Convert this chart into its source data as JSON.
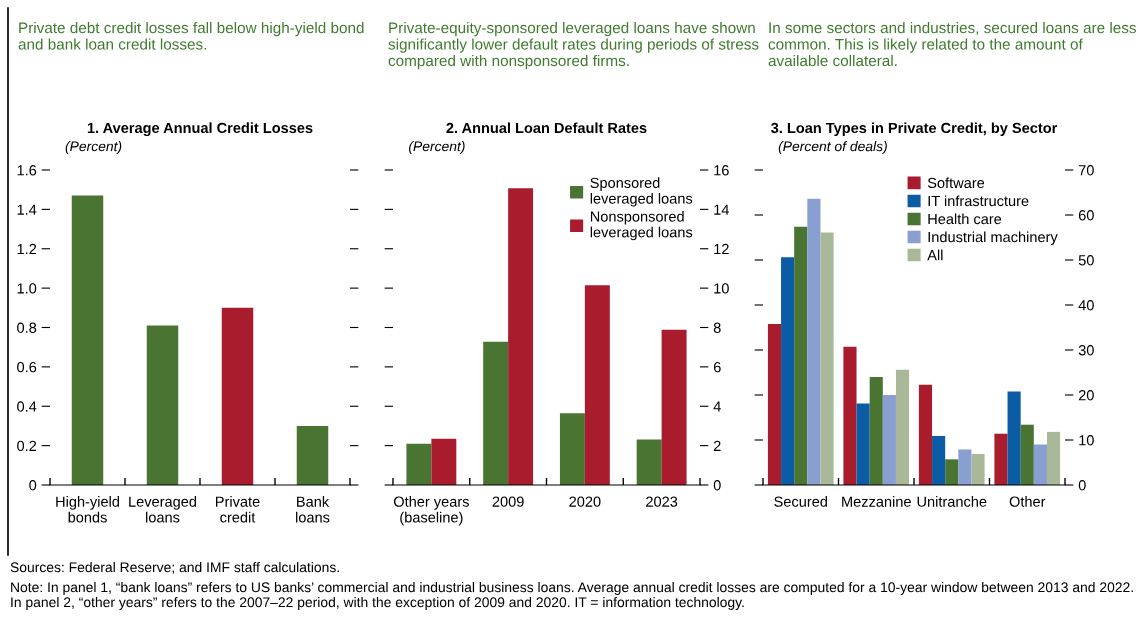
{
  "chart_data": [
    {
      "type": "bar",
      "title": "1. Average Annual Credit Losses",
      "subtitle": "(Percent)",
      "categories": [
        "High-yield\nbonds",
        "Leveraged\nloans",
        "Private\ncredit",
        "Bank\nloans"
      ],
      "values": [
        1.47,
        0.81,
        0.9,
        0.3
      ],
      "colors": [
        "#4a7432",
        "#4a7432",
        "#a91c2e",
        "#4a7432"
      ],
      "ylim": [
        0,
        1.6
      ],
      "yticks": [
        0,
        0.2,
        0.4,
        0.6,
        0.8,
        {
          "value": 1,
          "label": "1.0"
        },
        1.2,
        1.4,
        1.6
      ],
      "annotations": [
        "Private debt credit losses fall below high-yield bond and bank loan credit losses.",
        "Sources: Federal Reserve; and IMF staff calculations.",
        "Note: In panel 1, “bank loans” refers to US banks’ commercial and industrial business loans. Average annual credit losses are computed for a 10-year window between 2013 and 2022. In panel 2, “other years” refers to the 2007–22 period, with the exception of 2009 and 2020. IT = information technology."
      ]
    },
    {
      "type": "bar",
      "title": "2. Annual Loan Default Rates",
      "subtitle": "(Percent)",
      "categories": [
        "Other years\n(baseline)",
        "2009",
        "2020",
        "2023"
      ],
      "series": [
        {
          "name": "Sponsored\nleveraged loans",
          "color": "#4a7432",
          "axis": "y2",
          "values": [
            2.09,
            7.28,
            3.65,
            2.31
          ]
        },
        {
          "name": "Nonsponsored\nleveraged loans",
          "color": "#a91c2e",
          "axis": "y2",
          "values": [
            2.35,
            15.07,
            10.15,
            7.89
          ]
        }
      ],
      "y2lim": [
        0,
        16
      ],
      "y2ticks": [
        0,
        2,
        4,
        6,
        8,
        10,
        12,
        14,
        16
      ],
      "legend": "top right",
      "annotations": [
        "Private-equity-sponsored leveraged loans have shown significantly lower default rates during periods of stress compared with nonsponsored firms."
      ]
    },
    {
      "type": "bar",
      "title": "3. Loan Types in Private Credit, by Sector",
      "subtitle": "(Percent of deals)",
      "categories": [
        "Secured",
        "Mezzanine",
        "Unitranche",
        "Other"
      ],
      "series": [
        {
          "name": "Software",
          "color": "#a91c2e",
          "axis": "y2",
          "values": [
            35.8,
            30.7,
            22.3,
            11.4
          ]
        },
        {
          "name": "IT infrastructure",
          "color": "#0b5ca5",
          "axis": "y2",
          "values": [
            50.6,
            18.1,
            10.9,
            20.8
          ]
        },
        {
          "name": "Health care",
          "color": "#4a7432",
          "axis": "y2",
          "values": [
            57.4,
            24.0,
            5.7,
            13.4
          ]
        },
        {
          "name": "Industrial machinery",
          "color": "#8a9fd1",
          "axis": "y2",
          "values": [
            63.6,
            20.0,
            7.9,
            9.0
          ]
        },
        {
          "name": "All",
          "color": "#a9b899",
          "axis": "y2",
          "values": [
            56.1,
            25.6,
            6.9,
            11.8
          ]
        }
      ],
      "y2lim": [
        0,
        70
      ],
      "y2ticks": [
        0,
        10,
        20,
        30,
        40,
        50,
        60,
        70
      ],
      "legend": "top right",
      "annotations": [
        "In some sectors and industries, secured loans are less common. This is likely related to the amount of available collateral."
      ]
    }
  ]
}
